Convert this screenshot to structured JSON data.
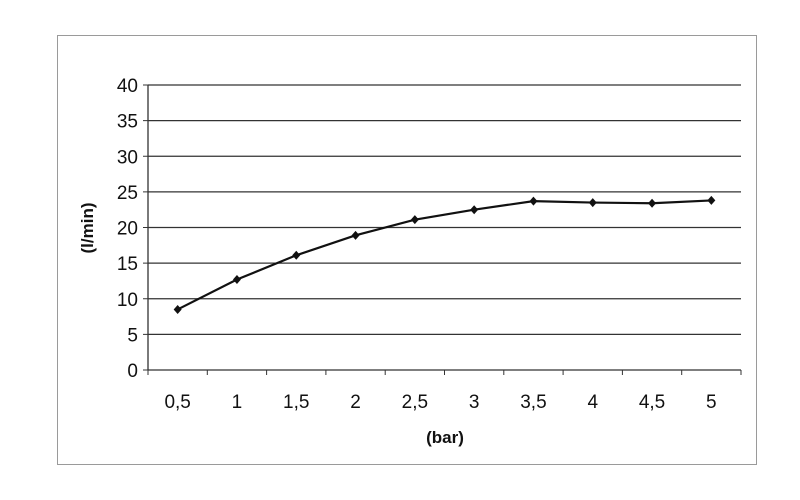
{
  "chart_data": {
    "type": "line",
    "title": "",
    "xlabel": "(bar)",
    "ylabel": "(l/min)",
    "categories": [
      "0,5",
      "1",
      "1,5",
      "2",
      "2,5",
      "3",
      "3,5",
      "4",
      "4,5",
      "5"
    ],
    "series": [
      {
        "values": [
          8.5,
          12.7,
          16.1,
          18.9,
          21.1,
          22.5,
          23.7,
          23.5,
          23.4,
          23.8
        ]
      }
    ],
    "yticks": [
      "0",
      "5",
      "10",
      "15",
      "20",
      "25",
      "30",
      "35",
      "40"
    ],
    "ylim": [
      0,
      40
    ],
    "grid": "horizontal",
    "legend": "none",
    "colors": {
      "line": "#111111",
      "grid": "#333333",
      "frame": "#9a9a9a"
    }
  }
}
